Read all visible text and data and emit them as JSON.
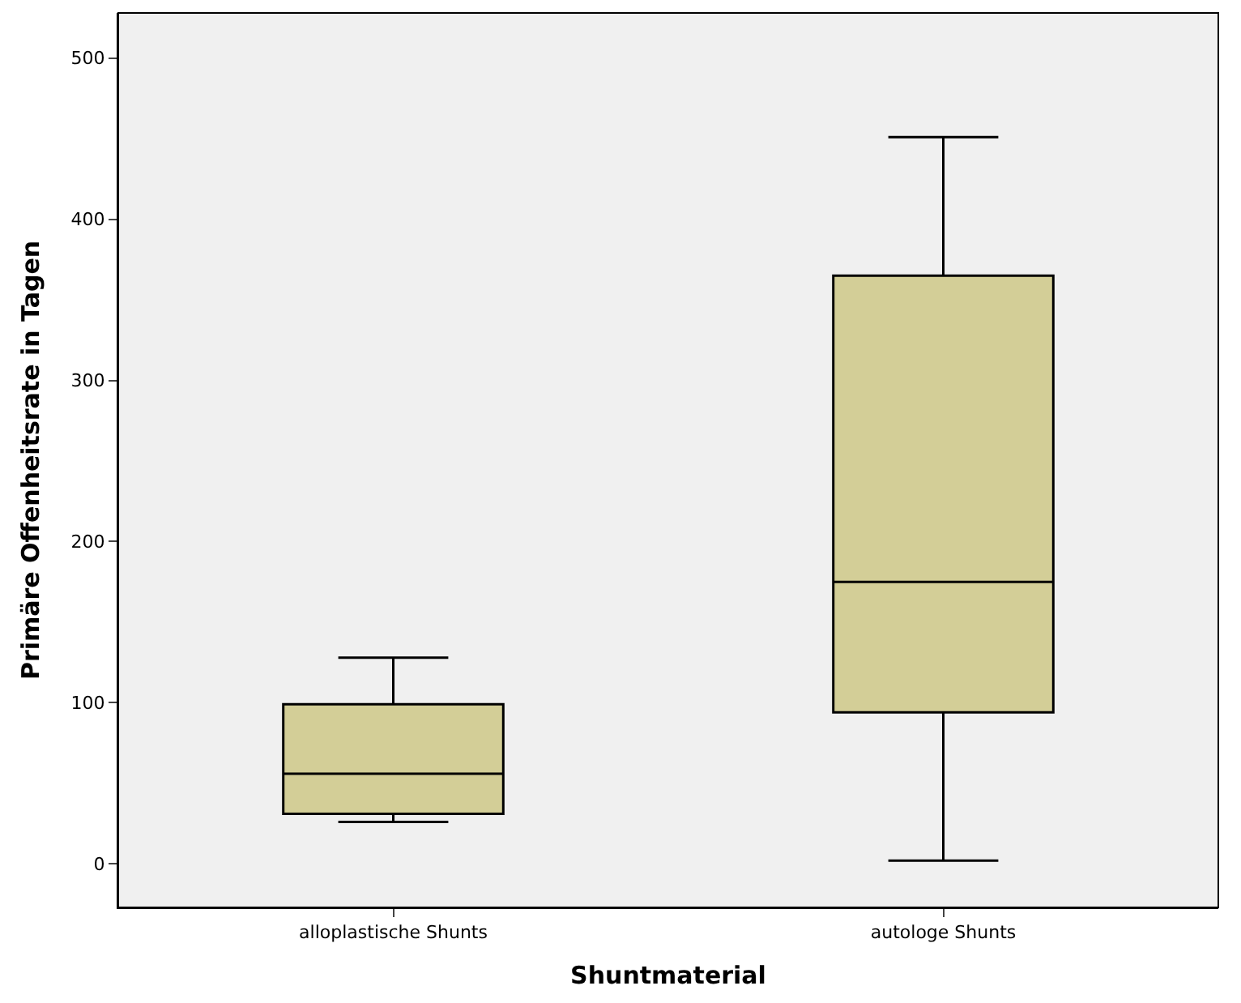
{
  "chart_data": {
    "type": "box",
    "xlabel": "Shuntmaterial",
    "ylabel": "Primäre Offenheitsrate in Tagen",
    "categories": [
      "alloplastische Shunts",
      "autologe Shunts"
    ],
    "boxes": [
      {
        "low": 26,
        "q1": 31,
        "median": 56,
        "q3": 99,
        "high": 128
      },
      {
        "low": 2,
        "q1": 94,
        "median": 175,
        "q3": 365,
        "high": 451
      }
    ],
    "color": "#d3ce97",
    "ylim": [
      -27,
      528
    ],
    "yticks": [
      0,
      100,
      200,
      300,
      400,
      500
    ],
    "grid": false,
    "legend": false
  }
}
